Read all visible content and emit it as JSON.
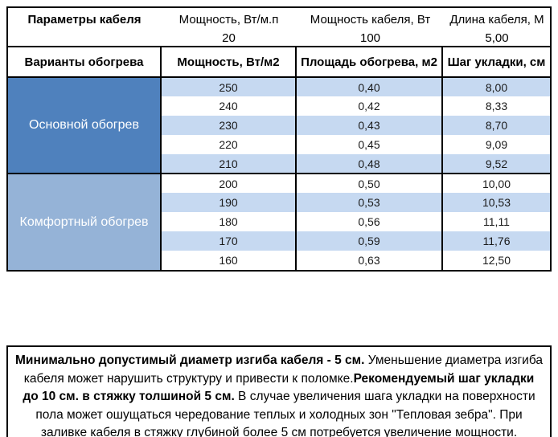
{
  "params": {
    "title": "Параметры кабеля",
    "items": [
      {
        "label": "Мощность, Вт/м.п",
        "value": "20"
      },
      {
        "label": "Мощность кабеля, Вт",
        "value": "100"
      },
      {
        "label": "Длина кабеля, М",
        "value": "5,00"
      }
    ]
  },
  "table": {
    "headers": [
      "Варианты обогрева",
      "Мощность, Вт/м2",
      "Площадь обогрева, м2",
      "Шаг укладки, см"
    ],
    "stripe_color": "#C6D9F1",
    "sections": [
      {
        "label": "Основной обогрев",
        "color": "#4F81BD",
        "rows": [
          [
            "250",
            "0,40",
            "8,00"
          ],
          [
            "240",
            "0,42",
            "8,33"
          ],
          [
            "230",
            "0,43",
            "8,70"
          ],
          [
            "220",
            "0,45",
            "9,09"
          ],
          [
            "210",
            "0,48",
            "9,52"
          ]
        ]
      },
      {
        "label": "Комфортный обогрев",
        "color": "#95B3D7",
        "rows": [
          [
            "200",
            "0,50",
            "10,00"
          ],
          [
            "190",
            "0,53",
            "10,53"
          ],
          [
            "180",
            "0,56",
            "11,11"
          ],
          [
            "170",
            "0,59",
            "11,76"
          ],
          [
            "160",
            "0,63",
            "12,50"
          ]
        ]
      }
    ]
  },
  "note": {
    "segments": [
      {
        "text": "Минимально допустимый диаметр изгиба кабеля - 5 см.",
        "bold": true
      },
      {
        "text": "  Уменьшение диаметра изгиба кабеля может нарушить структуру и привести к поломке.",
        "bold": false
      },
      {
        "text": "Рекомендуемый шаг укладки до 10 см. в стяжку толшиной 5 см.",
        "bold": true
      },
      {
        "text": " В  случае увеличения шага укладки на поверхности пола может ошущаться чередование теплых и холодных зон \"Тепловая зебра\". При заливке кабеля в стяжку глубиной более 5 см потребуется увеличение мощности.",
        "bold": false
      }
    ]
  }
}
